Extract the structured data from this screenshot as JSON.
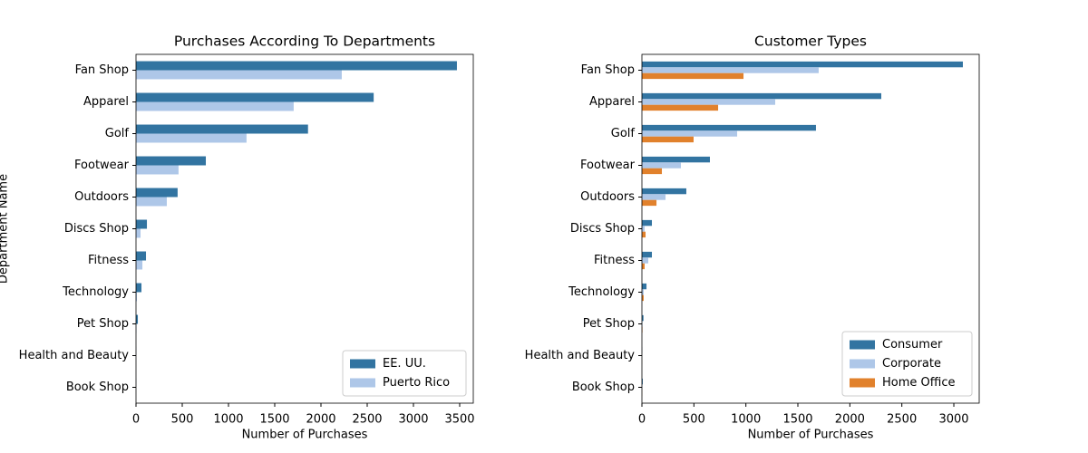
{
  "chart_data": [
    {
      "type": "barh",
      "title": "Purchases According To Departments",
      "xlabel": "Number of Purchases",
      "ylabel": "Department Name",
      "categories": [
        "Fan Shop",
        "Apparel",
        "Golf",
        "Footwear",
        "Outdoors",
        "Discs Shop",
        "Fitness",
        "Technology",
        "Pet Shop",
        "Health and Beauty",
        "Book Shop"
      ],
      "series": [
        {
          "name": "EE. UU.",
          "color": "#3274a1",
          "values": [
            3470,
            2570,
            1860,
            755,
            450,
            118,
            108,
            59,
            20,
            1,
            1
          ]
        },
        {
          "name": "Puerto Rico",
          "color": "#aec7e8",
          "values": [
            2225,
            1705,
            1195,
            460,
            333,
            49,
            69,
            10,
            5,
            0,
            0
          ]
        }
      ],
      "xlim": [
        0,
        3647
      ],
      "xticks": [
        0,
        500,
        1000,
        1500,
        2000,
        2500,
        3000,
        3500
      ],
      "legend": "lower right"
    },
    {
      "type": "barh",
      "title": "Customer Types",
      "xlabel": "Number of Purchases",
      "categories": [
        "Fan Shop",
        "Apparel",
        "Golf",
        "Footwear",
        "Outdoors",
        "Discs Shop",
        "Fitness",
        "Technology",
        "Pet Shop",
        "Health and Beauty",
        "Book Shop"
      ],
      "series": [
        {
          "name": "Consumer",
          "color": "#3274a1",
          "values": [
            3087,
            2302,
            1674,
            654,
            427,
            96,
            96,
            44,
            15,
            2,
            8
          ]
        },
        {
          "name": "Corporate",
          "color": "#aec7e8",
          "values": [
            1700,
            1282,
            916,
            375,
            227,
            26,
            61,
            17,
            5,
            1,
            3
          ]
        },
        {
          "name": "Home Office",
          "color": "#e1812c",
          "values": [
            977,
            733,
            497,
            192,
            140,
            35,
            26,
            17,
            5,
            1,
            2
          ]
        }
      ],
      "xlim": [
        0,
        3244
      ],
      "xticks": [
        0,
        500,
        1000,
        1500,
        2000,
        2500,
        3000
      ],
      "legend": "lower right"
    }
  ]
}
